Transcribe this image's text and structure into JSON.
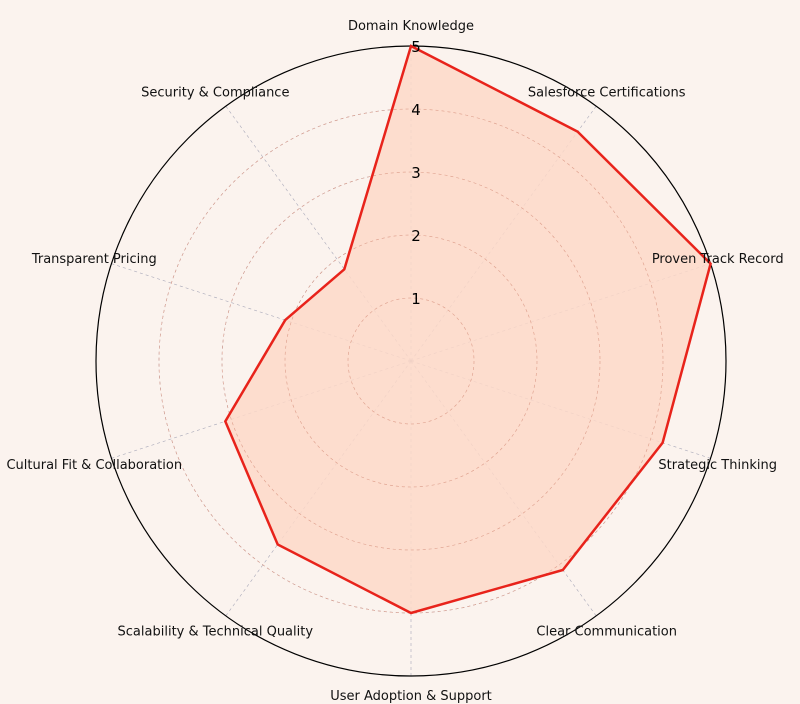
{
  "chart_data": {
    "type": "radar",
    "categories": [
      "Domain Knowledge",
      "Salesforce Certifications",
      "Proven Track Record",
      "Strategic Thinking",
      "Clear Communication",
      "User Adoption & Support",
      "Scalability & Technical Quality",
      "Cultural Fit & Collaboration",
      "Transparent Pricing",
      "Security & Compliance"
    ],
    "series": [
      {
        "values": [
          5,
          4.5,
          5,
          4.2,
          4.1,
          4,
          3.6,
          3.1,
          2.1,
          1.8
        ]
      }
    ],
    "rlim": [
      0,
      5
    ],
    "rticks": [
      1,
      2,
      3,
      4,
      5
    ],
    "grid": true,
    "colors": {
      "line": "#e8231b",
      "fill": "#fdd8c8",
      "background": "#fbf3ee"
    }
  }
}
